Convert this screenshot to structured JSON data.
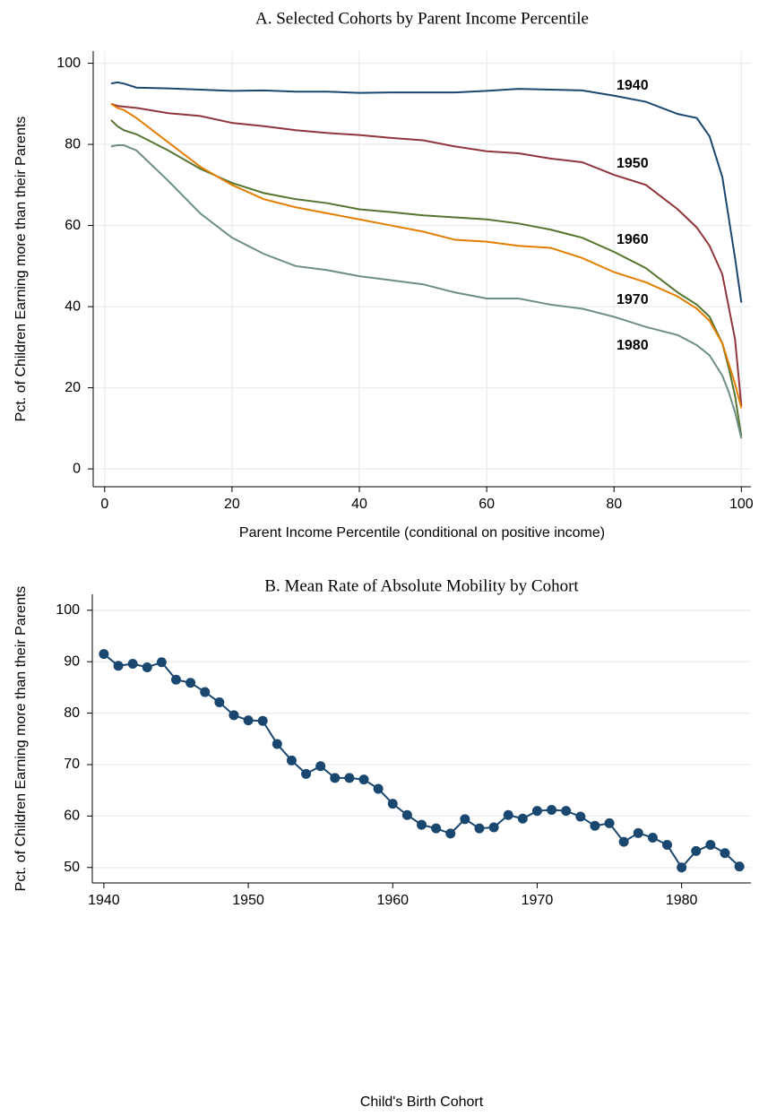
{
  "chart_data": [
    {
      "type": "line",
      "title": "A. Selected Cohorts by Parent Income Percentile",
      "xlabel": "Parent Income Percentile (conditional on positive income)",
      "ylabel": "Pct. of Children Earning more than their Parents",
      "x": [
        1,
        2,
        3,
        5,
        10,
        15,
        20,
        25,
        30,
        35,
        40,
        45,
        50,
        55,
        60,
        65,
        70,
        75,
        80,
        85,
        90,
        93,
        95,
        97,
        98,
        99,
        100
      ],
      "series": [
        {
          "name": "1940",
          "color": "#1a476f",
          "values": [
            95,
            95.3,
            95,
            94,
            93.8,
            93.5,
            93.2,
            93.3,
            93,
            93,
            92.7,
            92.8,
            92.8,
            92.8,
            93.2,
            93.7,
            93.5,
            93.3,
            92,
            90.5,
            87.5,
            86.5,
            82,
            72,
            62,
            52,
            41
          ]
        },
        {
          "name": "1950",
          "color": "#90353b",
          "values": [
            90,
            89.5,
            89.3,
            89,
            87.7,
            87,
            85.3,
            84.5,
            83.5,
            82.8,
            82.3,
            81.6,
            81,
            79.5,
            78.3,
            77.8,
            76.5,
            75.6,
            72.5,
            70,
            64,
            59.5,
            55,
            48,
            40,
            32,
            15.5
          ]
        },
        {
          "name": "1960",
          "color": "#55752f",
          "values": [
            86,
            84.5,
            83.5,
            82.5,
            78.5,
            74,
            70.5,
            68,
            66.5,
            65.5,
            64,
            63.3,
            62.5,
            62,
            61.5,
            60.5,
            59,
            57,
            53.5,
            49.5,
            43.5,
            40.5,
            37.5,
            31,
            25,
            18,
            8
          ]
        },
        {
          "name": "1970",
          "color": "#e37e00",
          "values": [
            90,
            89,
            88.5,
            86.5,
            80.5,
            74.5,
            70,
            66.5,
            64.5,
            63,
            61.5,
            60,
            58.5,
            56.5,
            56,
            55,
            54.5,
            52,
            48.5,
            46,
            42.5,
            39.5,
            36.5,
            31,
            26,
            21,
            15
          ]
        },
        {
          "name": "1980",
          "color": "#6e8e84",
          "values": [
            79.5,
            79.8,
            79.8,
            78.5,
            71,
            63,
            57,
            53,
            50,
            49,
            47.5,
            46.5,
            45.5,
            43.5,
            42,
            42,
            40.5,
            39.5,
            37.5,
            35,
            33,
            30.5,
            28,
            23,
            19,
            14,
            7.5
          ]
        }
      ],
      "xlim": [
        -1.8,
        101.5
      ],
      "xticks": [
        0,
        20,
        40,
        60,
        80,
        100
      ],
      "ylim": [
        -4.4,
        103
      ],
      "yticks": [
        0,
        20,
        40,
        60,
        80,
        100
      ],
      "grid": "both"
    },
    {
      "type": "line",
      "title": "B. Mean Rate of Absolute Mobility by Cohort",
      "xlabel": "Child's Birth Cohort",
      "ylabel": "Pct. of Children Earning more than their Parents",
      "x": [
        1940,
        1941,
        1942,
        1943,
        1944,
        1945,
        1946,
        1947,
        1948,
        1949,
        1950,
        1951,
        1952,
        1953,
        1954,
        1955,
        1956,
        1957,
        1958,
        1959,
        1960,
        1961,
        1962,
        1963,
        1964,
        1965,
        1966,
        1967,
        1968,
        1969,
        1970,
        1971,
        1972,
        1973,
        1974,
        1975,
        1976,
        1977,
        1978,
        1979,
        1980,
        1981,
        1982,
        1983,
        1984
      ],
      "values": [
        91.5,
        89.2,
        89.6,
        88.9,
        89.9,
        86.5,
        85.9,
        84.1,
        82.1,
        79.6,
        78.6,
        78.5,
        74,
        70.8,
        68.2,
        69.7,
        67.4,
        67.4,
        67.1,
        65.3,
        62.4,
        60.2,
        58.3,
        57.6,
        56.6,
        59.4,
        57.6,
        57.8,
        60.2,
        59.5,
        61,
        61.2,
        61,
        59.9,
        58.1,
        58.6,
        55,
        56.7,
        55.8,
        54.4,
        50,
        53.2,
        54.4,
        52.8,
        50.2
      ],
      "color": "#1a476f",
      "markers": true,
      "xlim": [
        1939.2,
        1984.8
      ],
      "xticks": [
        1940,
        1950,
        1960,
        1970,
        1980
      ],
      "ylim": [
        47,
        103.1
      ],
      "yticks": [
        50,
        60,
        70,
        80,
        90,
        100
      ],
      "grid": "y"
    }
  ]
}
